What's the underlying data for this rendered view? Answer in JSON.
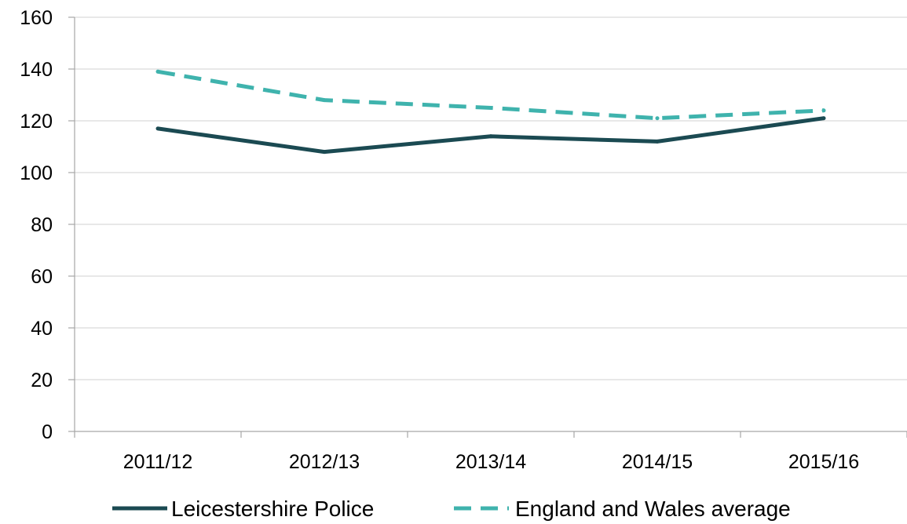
{
  "chart_data": {
    "type": "line",
    "categories": [
      "2011/12",
      "2012/13",
      "2013/14",
      "2014/15",
      "2015/16"
    ],
    "series": [
      {
        "name": "Leicestershire Police",
        "values": [
          117,
          108,
          114,
          112,
          121
        ],
        "color": "#1b4a52",
        "style": "solid"
      },
      {
        "name": "England and Wales average",
        "values": [
          139,
          128,
          125,
          121,
          124
        ],
        "color": "#3fb3ad",
        "style": "dashed"
      }
    ],
    "ylim": [
      0,
      160
    ],
    "yticks": [
      0,
      20,
      40,
      60,
      80,
      100,
      120,
      140,
      160
    ],
    "grid": true,
    "legend": "bottom"
  }
}
